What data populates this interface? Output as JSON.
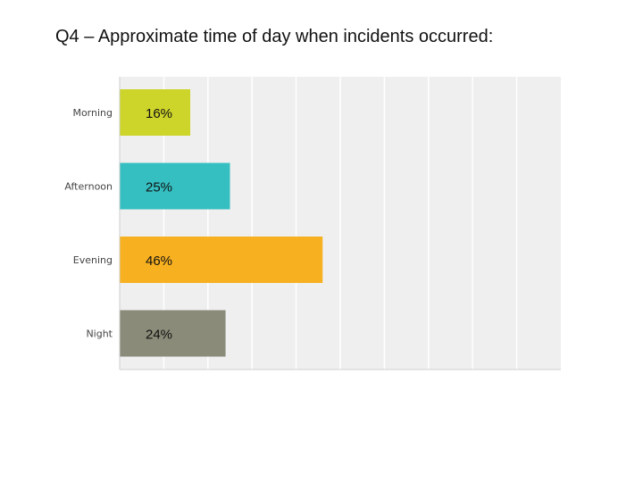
{
  "page": {
    "title": "Q4 – Approximate time of day when incidents occurred:"
  },
  "chart_data": {
    "type": "bar",
    "orientation": "horizontal",
    "title": "Q4 – Approximate time of day when incidents occurred:",
    "categories": [
      "Morning",
      "Afternoon",
      "Evening",
      "Night"
    ],
    "values": [
      16,
      25,
      46,
      24
    ],
    "value_labels": [
      "16%",
      "25%",
      "46%",
      "24%"
    ],
    "colors": [
      "#cdd42a",
      "#35bfc1",
      "#f7b020",
      "#8a8b79"
    ],
    "xlim": [
      0,
      100
    ],
    "grid": true,
    "plot_background": "#efefef",
    "gridline_color": "#ffffff"
  }
}
